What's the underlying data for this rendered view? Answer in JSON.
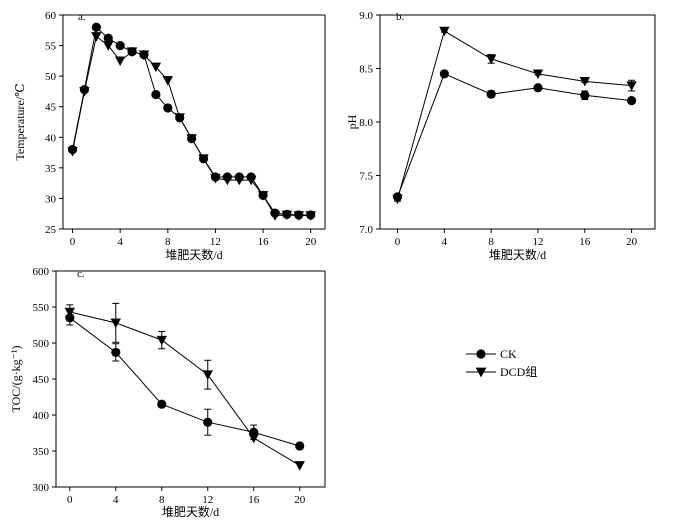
{
  "chart_data": [
    {
      "type": "line",
      "panel_label": "a.",
      "xlabel": "堆肥天数/d",
      "ylabel": "Temperature/℃",
      "xlim": [
        -0.8,
        21.2
      ],
      "ylim": [
        25,
        60
      ],
      "xticks": [
        0,
        4,
        8,
        12,
        16,
        20
      ],
      "yticks": [
        25,
        30,
        35,
        40,
        45,
        50,
        55,
        60
      ],
      "grid": false,
      "series": [
        {
          "name": "CK",
          "marker": "circle",
          "x": [
            0,
            1,
            2,
            3,
            4,
            5,
            6,
            7,
            8,
            9,
            10,
            11,
            12,
            13,
            14,
            15,
            16,
            17,
            18,
            19,
            20
          ],
          "y": [
            38.0,
            47.8,
            58.0,
            56.2,
            55.0,
            54.0,
            53.5,
            47.0,
            44.8,
            43.2,
            39.8,
            36.5,
            33.5,
            33.5,
            33.5,
            33.5,
            30.5,
            27.6,
            27.4,
            27.3,
            27.3
          ],
          "err": [
            0,
            0,
            0,
            0,
            0,
            0,
            0,
            0,
            0,
            0,
            0,
            0,
            0,
            0,
            0,
            0,
            0,
            0,
            0,
            0,
            0
          ]
        },
        {
          "name": "DCD组",
          "marker": "triangle-down",
          "x": [
            0,
            1,
            2,
            3,
            4,
            5,
            6,
            7,
            8,
            9,
            10,
            11,
            12,
            13,
            14,
            15,
            16,
            17,
            18,
            19,
            20
          ],
          "y": [
            37.7,
            47.5,
            56.5,
            55.0,
            52.5,
            54.0,
            53.5,
            51.5,
            49.3,
            43.2,
            39.8,
            36.5,
            33.3,
            33.0,
            33.0,
            33.0,
            30.5,
            27.2,
            27.3,
            27.2,
            27.2
          ],
          "err": [
            0,
            0,
            0,
            0,
            0,
            0,
            0,
            0,
            0,
            0,
            0,
            0,
            0,
            0,
            0,
            0,
            0,
            0,
            0,
            0,
            0
          ]
        }
      ]
    },
    {
      "type": "line",
      "panel_label": "b.",
      "xlabel": "堆肥天数/d",
      "ylabel": "pH",
      "xlim": [
        -1.5,
        22
      ],
      "ylim": [
        7.0,
        9.0
      ],
      "xticks": [
        0,
        4,
        8,
        12,
        16,
        20
      ],
      "yticks": [
        "7.0",
        "7.5",
        "8.0",
        "8.5",
        "9.0"
      ],
      "grid": false,
      "series": [
        {
          "name": "CK",
          "marker": "circle",
          "x": [
            0,
            4,
            8,
            12,
            16,
            20
          ],
          "y": [
            7.3,
            8.45,
            8.26,
            8.32,
            8.25,
            8.2
          ],
          "err": [
            0.02,
            0.01,
            0.03,
            0.02,
            0.04,
            0.01
          ]
        },
        {
          "name": "DCD组",
          "marker": "triangle-down",
          "x": [
            0,
            4,
            8,
            12,
            16,
            20
          ],
          "y": [
            7.28,
            8.85,
            8.59,
            8.45,
            8.38,
            8.34
          ],
          "err": [
            0.02,
            0.01,
            0.04,
            0.01,
            0.01,
            0.05
          ]
        }
      ]
    },
    {
      "type": "line",
      "panel_label": "c.",
      "xlabel": "堆肥天数/d",
      "ylabel": "TOC/(g·kg⁻¹)",
      "xlim": [
        -1.2,
        22.2
      ],
      "ylim": [
        300,
        600
      ],
      "xticks": [
        0,
        4,
        8,
        12,
        16,
        20
      ],
      "yticks": [
        300,
        350,
        400,
        450,
        500,
        550,
        600
      ],
      "grid": false,
      "legend_position": "right",
      "series": [
        {
          "name": "CK",
          "marker": "circle",
          "x": [
            0,
            4,
            8,
            12,
            16,
            20
          ],
          "y": [
            535,
            487,
            415,
            390,
            376,
            357
          ],
          "err": [
            10,
            12,
            0,
            18,
            10,
            0
          ]
        },
        {
          "name": "DCD组",
          "marker": "triangle-down",
          "x": [
            0,
            4,
            8,
            12,
            16,
            20
          ],
          "y": [
            543,
            528,
            504,
            456,
            368,
            330
          ],
          "err": [
            10,
            27,
            12,
            20,
            0,
            0
          ]
        }
      ]
    }
  ],
  "legend": {
    "items": [
      {
        "label": "CK",
        "marker": "circle"
      },
      {
        "label": "DCD组",
        "marker": "triangle-down"
      }
    ]
  }
}
